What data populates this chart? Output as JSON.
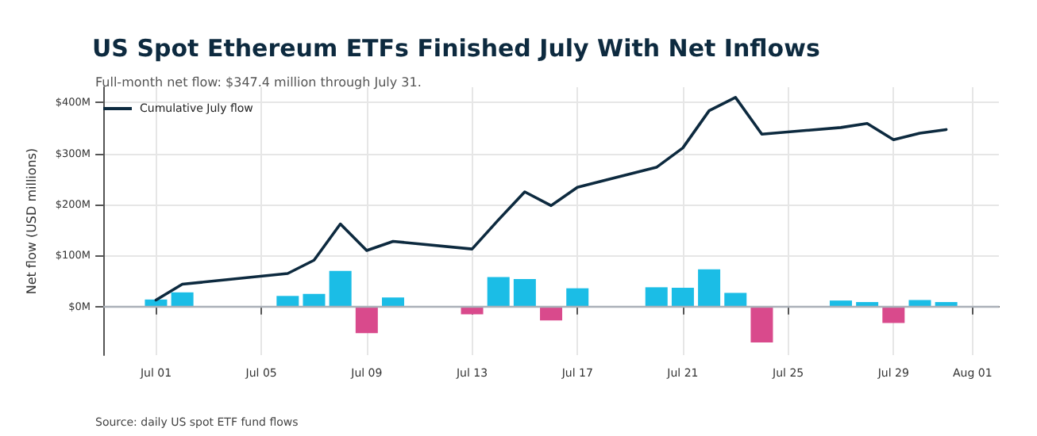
{
  "chart_data": {
    "type": "bar",
    "title": "US Spot Ethereum ETFs Finished July With Net Inflows",
    "subtitle": "Full-month net flow: $347.4 million through July 31.",
    "ylabel": "Net flow (USD millions)",
    "x": [
      "--07-01",
      "--07-02",
      "--07-06",
      "--07-07",
      "--07-08",
      "--07-09",
      "--07-10",
      "--07-13",
      "--07-14",
      "--07-15",
      "--07-16",
      "--07-17",
      "--07-20",
      "--07-21",
      "--07-22",
      "--07-23",
      "--07-24",
      "--07-27",
      "--07-28",
      "--07-29",
      "--07-30",
      "--07-31"
    ],
    "series": [
      {
        "values": [
          14,
          28,
          21,
          25,
          70,
          -52,
          18,
          -15,
          58,
          54,
          -27,
          36,
          38,
          37,
          73,
          27,
          -70,
          12,
          9,
          -32,
          13,
          9
        ],
        "colors": [
          "#1bbde6",
          "#1bbde6",
          "#1bbde6",
          "#1bbde6",
          "#1bbde6",
          "#d94a8c",
          "#1bbde6",
          "#d94a8c",
          "#1bbde6",
          "#1bbde6",
          "#d94a8c",
          "#1bbde6",
          "#1bbde6",
          "#1bbde6",
          "#1bbde6",
          "#1bbde6",
          "#d94a8c",
          "#1bbde6",
          "#1bbde6",
          "#d94a8c",
          "#1bbde6",
          "#1bbde6"
        ]
      },
      {
        "type": "line",
        "name": "Cumulative July flow",
        "color": "#0d2a3f",
        "values": [
          13,
          44,
          65,
          91,
          162,
          110,
          128,
          113,
          170,
          225,
          198,
          234,
          273,
          311,
          384,
          410,
          338,
          351,
          359,
          327,
          340,
          347
        ]
      }
    ],
    "xlim": [
      "--06-29",
      "--08-02"
    ],
    "xticks": [
      {
        "value": "--07-01",
        "label": "Jul 01"
      },
      {
        "value": "--07-05",
        "label": "Jul 05"
      },
      {
        "value": "--07-09",
        "label": "Jul 09"
      },
      {
        "value": "--07-13",
        "label": "Jul 13"
      },
      {
        "value": "--07-17",
        "label": "Jul 17"
      },
      {
        "value": "--07-21",
        "label": "Jul 21"
      },
      {
        "value": "--07-25",
        "label": "Jul 25"
      },
      {
        "value": "--07-29",
        "label": "Jul 29"
      },
      {
        "value": "--08-01",
        "label": "Aug 01"
      }
    ],
    "ylim": [
      -95,
      430
    ],
    "yticks": [
      {
        "value": 0,
        "label": "$0M"
      },
      {
        "value": 100,
        "label": "$100M"
      },
      {
        "value": 200,
        "label": "$200M"
      },
      {
        "value": 300,
        "label": "$300M"
      },
      {
        "value": 400,
        "label": "$400M"
      }
    ],
    "ref_lines": [
      {
        "axis": "y",
        "value": 0,
        "color": "#aab0b8"
      }
    ],
    "grid": true,
    "legend": "top left",
    "line_style": "solid",
    "marker": "none",
    "annotations": [
      "Source: daily US spot ETF fund flows"
    ]
  }
}
